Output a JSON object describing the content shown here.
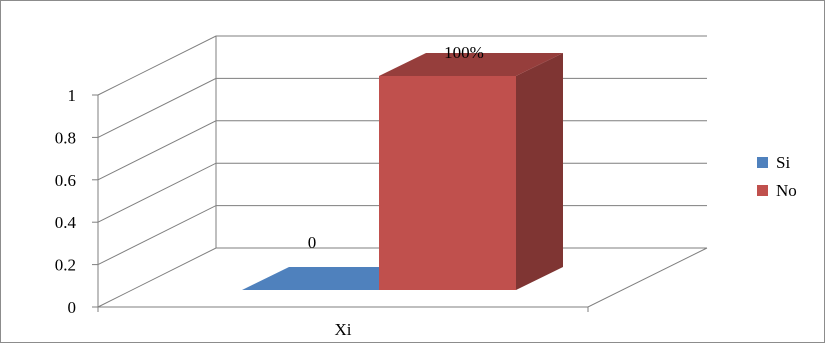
{
  "chart_data": {
    "type": "bar",
    "style": "3d-column",
    "categories": [
      "Xi"
    ],
    "series": [
      {
        "name": "Si",
        "values": [
          0
        ],
        "data_label": "0",
        "color": "#4F81BD"
      },
      {
        "name": "No",
        "values": [
          1
        ],
        "data_label": "100%",
        "color": "#C0504D"
      }
    ],
    "yticks": [
      "0",
      "0.2",
      "0.4",
      "0.6",
      "0.8",
      "1"
    ],
    "ylim": [
      0,
      1
    ],
    "grid": true,
    "legend": "right"
  }
}
